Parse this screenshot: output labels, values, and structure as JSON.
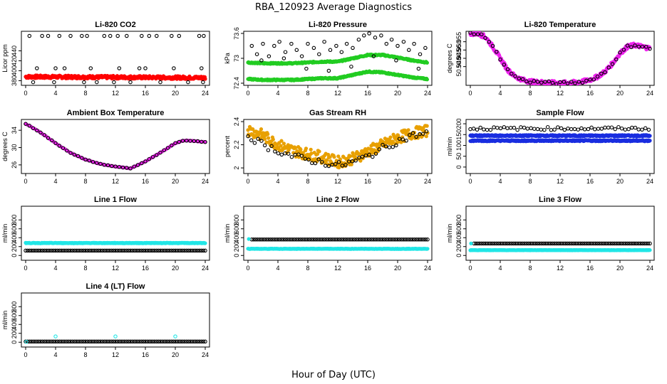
{
  "title": "RBA_120923  Average Diagnostics",
  "xlabel": "Hour of Day (UTC)",
  "colors": {
    "black": "#000000",
    "red": "#ff0000",
    "green": "#22cc22",
    "magenta": "#ee22ee",
    "orange": "#e8a000",
    "blue": "#1a2ee0",
    "cyan": "#22e6e6"
  },
  "chart_data": [
    {
      "type": "scatter",
      "title": "Li-820 CO2",
      "ylabel": "Licor ppm",
      "xlim": [
        0,
        24
      ],
      "ylim": [
        375,
        475
      ],
      "xticks": [
        0,
        4,
        8,
        12,
        16,
        20,
        24
      ],
      "yticks": [
        380,
        400,
        420,
        440
      ],
      "series": [
        {
          "color": "#ff0000",
          "filled": true,
          "kind": "band",
          "x": [
            0,
            24
          ],
          "y": [
            388,
            386
          ],
          "jitter": 3
        },
        {
          "color": "#000000",
          "filled": false,
          "kind": "points",
          "x": [
            0.5,
            2.2,
            3.0,
            4.5,
            6.0,
            7.5,
            8.2,
            10.5,
            11.3,
            12.3,
            13.5,
            15.5,
            16.5,
            17.5,
            19.5,
            20.5,
            23.2,
            23.8,
            1.5,
            4.0,
            5.2,
            8.7,
            12.5,
            15.2,
            16.0,
            19.8,
            23.5,
            1.0,
            3.8,
            7.8,
            9.5,
            11.8,
            14.0,
            18.0,
            21.7,
            23.7
          ],
          "y": [
            470,
            470,
            470,
            470,
            470,
            470,
            470,
            470,
            470,
            470,
            470,
            470,
            470,
            470,
            470,
            470,
            470,
            470,
            405,
            405,
            405,
            405,
            405,
            405,
            405,
            405,
            405,
            377,
            377,
            377,
            377,
            377,
            377,
            377,
            377,
            377
          ]
        }
      ]
    },
    {
      "type": "scatter",
      "title": "Li-820 Pressure",
      "ylabel": "kPa",
      "xlim": [
        0,
        24
      ],
      "ylim": [
        72.4,
        73.6
      ],
      "xticks": [
        0,
        4,
        8,
        12,
        16,
        20,
        24
      ],
      "yticks": [
        72.4,
        73.0,
        73.6
      ],
      "series": [
        {
          "color": "#22cc22",
          "filled": true,
          "kind": "curve",
          "x": [
            0,
            2,
            4,
            6,
            8,
            10,
            12,
            14,
            16,
            18,
            20,
            22,
            24
          ],
          "y": [
            72.9,
            72.88,
            72.88,
            72.88,
            72.9,
            72.92,
            72.92,
            73.0,
            73.08,
            73.08,
            73.02,
            72.95,
            72.9
          ],
          "jitter": 0.015
        },
        {
          "color": "#22cc22",
          "filled": true,
          "kind": "curve",
          "x": [
            0,
            2,
            4,
            6,
            8,
            10,
            12,
            14,
            16,
            18,
            20,
            22,
            24
          ],
          "y": [
            72.5,
            72.48,
            72.48,
            72.48,
            72.5,
            72.52,
            72.52,
            72.6,
            72.68,
            72.66,
            72.6,
            72.54,
            72.5
          ],
          "jitter": 0.015
        },
        {
          "color": "#000000",
          "filled": false,
          "kind": "points",
          "x": [
            0.5,
            1.2,
            2.0,
            2.8,
            3.5,
            4.2,
            5.0,
            5.8,
            6.5,
            7.2,
            8.0,
            8.8,
            9.5,
            10.2,
            11.0,
            11.8,
            12.5,
            13.2,
            14.0,
            14.8,
            15.5,
            16.2,
            17.0,
            17.8,
            18.5,
            19.2,
            20.0,
            20.8,
            21.5,
            22.2,
            23.0,
            23.7,
            1.8,
            4.8,
            7.8,
            10.8,
            13.8,
            16.8,
            19.8,
            22.8
          ],
          "y": [
            73.3,
            73.1,
            73.35,
            73.05,
            73.3,
            73.4,
            73.15,
            73.35,
            73.2,
            73.05,
            73.35,
            73.25,
            73.1,
            73.4,
            73.2,
            73.3,
            73.15,
            73.35,
            73.25,
            73.45,
            73.55,
            73.6,
            73.5,
            73.55,
            73.35,
            73.45,
            73.3,
            73.4,
            73.2,
            73.35,
            73.1,
            73.25,
            72.95,
            73.0,
            72.75,
            72.7,
            72.8,
            73.05,
            72.95,
            72.75
          ]
        }
      ]
    },
    {
      "type": "scatter",
      "title": "Li-820 Temperature",
      "ylabel": "degrees C",
      "xlim": [
        0,
        24
      ],
      "ylim": [
        50.93,
        50.96
      ],
      "xticks": [
        0,
        4,
        8,
        12,
        16,
        20,
        24
      ],
      "yticks": [
        50.94,
        50.945,
        50.95,
        50.955
      ],
      "yticklabels": [
        "50.940",
        "50.945",
        "50.950",
        "50.955"
      ],
      "series": [
        {
          "color": "#ee22ee",
          "filled": true,
          "kind": "curve",
          "x": [
            0,
            1,
            2,
            3,
            4,
            5,
            6,
            7,
            8,
            10,
            12,
            14,
            15,
            16,
            17,
            18,
            19,
            20,
            21,
            22,
            23,
            24
          ],
          "y": [
            50.96,
            50.96,
            50.958,
            50.952,
            50.945,
            50.938,
            50.934,
            50.932,
            50.931,
            50.9305,
            50.93,
            50.9305,
            50.931,
            50.932,
            50.934,
            50.937,
            50.942,
            50.948,
            50.952,
            50.953,
            50.952,
            50.951
          ],
          "jitter": 0.0012
        },
        {
          "color": "#000000",
          "filled": false,
          "kind": "curve",
          "x": [
            0,
            1,
            2,
            3,
            4,
            5,
            6,
            7,
            8,
            10,
            12,
            14,
            15,
            16,
            17,
            18,
            19,
            20,
            21,
            22,
            23,
            24
          ],
          "y": [
            50.96,
            50.96,
            50.958,
            50.952,
            50.945,
            50.938,
            50.934,
            50.932,
            50.931,
            50.9305,
            50.93,
            50.9305,
            50.931,
            50.932,
            50.934,
            50.937,
            50.942,
            50.948,
            50.952,
            50.953,
            50.952,
            50.951
          ],
          "jitter": 0.0008,
          "step": 0.5
        }
      ]
    },
    {
      "type": "scatter",
      "title": "Ambient Box Temperature",
      "ylabel": "degrees C",
      "xlim": [
        0,
        24
      ],
      "ylim": [
        24.5,
        36
      ],
      "xticks": [
        0,
        4,
        8,
        12,
        16,
        20,
        24
      ],
      "yticks": [
        26,
        30,
        34
      ],
      "series": [
        {
          "color": "#ee22ee",
          "filled": true,
          "kind": "curve",
          "x": [
            0,
            2,
            4,
            6,
            8,
            10,
            12,
            14,
            16,
            18,
            20,
            21,
            22,
            24
          ],
          "y": [
            35.5,
            33.5,
            31.0,
            28.8,
            27.2,
            26.2,
            25.6,
            25.2,
            26.8,
            28.8,
            31.0,
            31.6,
            31.6,
            31.3
          ],
          "jitter": 0.05,
          "step": 0.25
        },
        {
          "color": "#000000",
          "filled": false,
          "kind": "curve",
          "x": [
            0,
            2,
            4,
            6,
            8,
            10,
            12,
            14,
            16,
            18,
            20,
            21,
            22,
            24
          ],
          "y": [
            35.5,
            33.5,
            31.0,
            28.8,
            27.2,
            26.2,
            25.6,
            25.2,
            26.8,
            28.8,
            31.0,
            31.6,
            31.6,
            31.3
          ],
          "jitter": 0.05,
          "step": 0.5
        }
      ]
    },
    {
      "type": "scatter",
      "title": "Gas Stream RH",
      "ylabel": "percent",
      "xlim": [
        0,
        24
      ],
      "ylim": [
        1.97,
        2.4
      ],
      "xticks": [
        0,
        4,
        8,
        12,
        16,
        20,
        24
      ],
      "yticks": [
        2.0,
        2.2,
        2.4
      ],
      "series": [
        {
          "color": "#e8a000",
          "filled": true,
          "kind": "curve",
          "x": [
            0,
            2,
            4,
            6,
            8,
            10,
            12,
            14,
            16,
            18,
            20,
            22,
            24
          ],
          "y": [
            2.33,
            2.28,
            2.2,
            2.15,
            2.12,
            2.09,
            2.05,
            2.08,
            2.14,
            2.2,
            2.26,
            2.3,
            2.32
          ],
          "jitter": 0.05,
          "step": 0.08
        },
        {
          "color": "#000000",
          "filled": false,
          "kind": "curve",
          "x": [
            0,
            2,
            4,
            6,
            8,
            10,
            12,
            14,
            16,
            18,
            20,
            22,
            24
          ],
          "y": [
            2.28,
            2.2,
            2.15,
            2.1,
            2.07,
            2.05,
            2.02,
            2.05,
            2.1,
            2.17,
            2.23,
            2.28,
            2.3
          ],
          "jitter": 0.03,
          "step": 0.45
        }
      ]
    },
    {
      "type": "scatter",
      "title": "Sample Flow",
      "ylabel": "ml/min",
      "xlim": [
        0,
        24
      ],
      "ylim": [
        -20,
        210
      ],
      "xticks": [
        0,
        4,
        8,
        12,
        16,
        20,
        24
      ],
      "yticks": [
        0,
        50,
        100,
        150,
        200
      ],
      "series": [
        {
          "color": "#1a2ee0",
          "filled": true,
          "kind": "band",
          "x": [
            0,
            24
          ],
          "y": [
            145,
            145
          ],
          "jitter": 3
        },
        {
          "color": "#1a2ee0",
          "filled": true,
          "kind": "band",
          "x": [
            0,
            24
          ],
          "y": [
            122,
            122
          ],
          "jitter": 3
        },
        {
          "color": "#000000",
          "filled": false,
          "kind": "curve",
          "x": [
            0,
            24
          ],
          "y": [
            178,
            178
          ],
          "jitter": 7,
          "step": 0.45
        }
      ]
    },
    {
      "type": "scatter",
      "title": "Line 1 Flow",
      "ylabel": "ml/min",
      "xlim": [
        0,
        24
      ],
      "ylim": [
        -60,
        1060
      ],
      "xticks": [
        0,
        4,
        8,
        12,
        16,
        20,
        24
      ],
      "yticks": [
        0,
        200,
        400,
        600,
        800
      ],
      "series": [
        {
          "color": "#22e6e6",
          "filled": true,
          "kind": "band",
          "x": [
            0,
            24
          ],
          "y": [
            280,
            280
          ],
          "jitter": 6
        },
        {
          "color": "#000000",
          "filled": false,
          "kind": "curve",
          "x": [
            0,
            24
          ],
          "y": [
            110,
            110
          ],
          "jitter": 0,
          "step": 0.25
        }
      ]
    },
    {
      "type": "scatter",
      "title": "Line 2 Flow",
      "ylabel": "ml/min",
      "xlim": [
        0,
        24
      ],
      "ylim": [
        -60,
        1060
      ],
      "xticks": [
        0,
        4,
        8,
        12,
        16,
        20,
        24
      ],
      "yticks": [
        0,
        200,
        400,
        600,
        800
      ],
      "series": [
        {
          "color": "#22e6e6",
          "filled": true,
          "kind": "band",
          "x": [
            0,
            24
          ],
          "y": [
            150,
            150
          ],
          "jitter": 4
        },
        {
          "color": "#000000",
          "filled": false,
          "kind": "curve",
          "x": [
            0.5,
            24
          ],
          "y": [
            360,
            360
          ],
          "jitter": 0,
          "step": 0.25
        },
        {
          "color": "#22e6e6",
          "filled": true,
          "kind": "points",
          "x": [
            0.1
          ],
          "y": [
            370
          ]
        }
      ]
    },
    {
      "type": "scatter",
      "title": "Line 3 Flow",
      "ylabel": "ml/min",
      "xlim": [
        0,
        24
      ],
      "ylim": [
        -60,
        1060
      ],
      "xticks": [
        0,
        4,
        8,
        12,
        16,
        20,
        24
      ],
      "yticks": [
        0,
        200,
        400,
        600,
        800
      ],
      "series": [
        {
          "color": "#22e6e6",
          "filled": true,
          "kind": "band",
          "x": [
            0,
            24
          ],
          "y": [
            120,
            120
          ],
          "jitter": 4
        },
        {
          "color": "#000000",
          "filled": false,
          "kind": "curve",
          "x": [
            0.5,
            24
          ],
          "y": [
            270,
            270
          ],
          "jitter": 0,
          "step": 0.25
        },
        {
          "color": "#22e6e6",
          "filled": true,
          "kind": "points",
          "x": [
            0.1
          ],
          "y": [
            270
          ]
        }
      ]
    },
    {
      "type": "scatter",
      "title": "Line 4 (LT) Flow",
      "ylabel": "ml/min",
      "xlim": [
        0,
        24
      ],
      "ylim": [
        -60,
        1060
      ],
      "xticks": [
        0,
        4,
        8,
        12,
        16,
        20,
        24
      ],
      "yticks": [
        0,
        200,
        400,
        600,
        800
      ],
      "series": [
        {
          "color": "#000000",
          "filled": false,
          "kind": "curve",
          "x": [
            0,
            24
          ],
          "y": [
            15,
            15
          ],
          "jitter": 0,
          "step": 0.25
        },
        {
          "color": "#22e6e6",
          "filled": false,
          "kind": "points",
          "x": [
            0.1,
            4.0,
            12.0,
            20.0
          ],
          "y": [
            10,
            130,
            130,
            130
          ]
        }
      ]
    }
  ]
}
